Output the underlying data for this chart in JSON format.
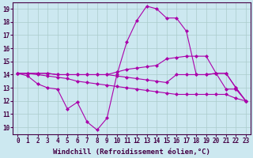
{
  "background_color": "#cce8f0",
  "grid_color": "#aacccc",
  "line_color": "#aa00aa",
  "marker": "D",
  "markersize": 2.0,
  "linewidth": 0.8,
  "xlabel": "Windchill (Refroidissement éolien,°C)",
  "xlabel_fontsize": 6.5,
  "tick_fontsize": 5.5,
  "xlim": [
    -0.5,
    23.5
  ],
  "ylim": [
    9.5,
    19.5
  ],
  "xticks": [
    0,
    1,
    2,
    3,
    4,
    5,
    6,
    7,
    8,
    9,
    10,
    11,
    12,
    13,
    14,
    15,
    16,
    17,
    18,
    19,
    20,
    21,
    22,
    23
  ],
  "yticks": [
    10,
    11,
    12,
    13,
    14,
    15,
    16,
    17,
    18,
    19
  ],
  "series": [
    {
      "x": [
        0,
        1,
        2,
        3,
        4,
        5,
        6,
        7,
        8,
        9,
        10,
        11,
        12,
        13,
        14,
        15,
        16,
        17,
        18,
        19,
        20,
        21,
        22,
        23
      ],
      "y": [
        14.1,
        13.9,
        13.3,
        13.0,
        12.9,
        11.4,
        11.9,
        10.4,
        9.8,
        10.7,
        14.0,
        16.5,
        18.1,
        19.2,
        19.0,
        18.3,
        18.3,
        17.3,
        14.0,
        14.0,
        14.1,
        12.9,
        12.9,
        12.0
      ]
    },
    {
      "x": [
        0,
        1,
        2,
        3,
        4,
        5,
        6,
        7,
        8,
        9,
        10,
        11,
        12,
        13,
        14,
        15,
        16,
        17,
        18,
        19,
        20,
        21,
        22,
        23
      ],
      "y": [
        14.1,
        14.1,
        14.1,
        14.1,
        14.0,
        14.0,
        14.0,
        14.0,
        14.0,
        14.0,
        14.2,
        14.4,
        14.5,
        14.6,
        14.7,
        15.2,
        15.3,
        15.4,
        15.4,
        15.4,
        14.1,
        14.1,
        13.0,
        12.0
      ]
    },
    {
      "x": [
        0,
        1,
        2,
        3,
        4,
        5,
        6,
        7,
        8,
        9,
        10,
        11,
        12,
        13,
        14,
        15,
        16,
        17,
        18,
        19,
        20,
        21,
        22,
        23
      ],
      "y": [
        14.1,
        14.1,
        14.1,
        14.1,
        14.0,
        14.0,
        14.0,
        14.0,
        14.0,
        14.0,
        13.9,
        13.8,
        13.7,
        13.6,
        13.5,
        13.4,
        14.0,
        14.0,
        14.0,
        14.0,
        14.1,
        14.1,
        13.0,
        12.0
      ]
    },
    {
      "x": [
        0,
        1,
        2,
        3,
        4,
        5,
        6,
        7,
        8,
        9,
        10,
        11,
        12,
        13,
        14,
        15,
        16,
        17,
        18,
        19,
        20,
        21,
        22,
        23
      ],
      "y": [
        14.1,
        14.1,
        14.0,
        13.9,
        13.8,
        13.7,
        13.5,
        13.4,
        13.3,
        13.2,
        13.1,
        13.0,
        12.9,
        12.8,
        12.7,
        12.6,
        12.5,
        12.5,
        12.5,
        12.5,
        12.5,
        12.5,
        12.2,
        12.0
      ]
    }
  ]
}
